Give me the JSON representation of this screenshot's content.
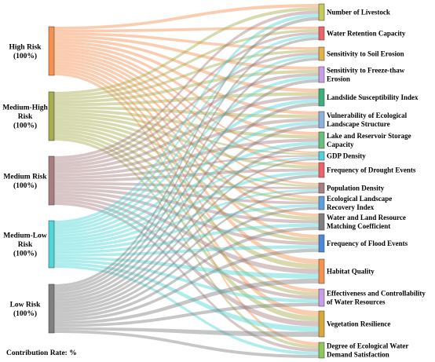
{
  "sources": [
    {
      "id": "high",
      "lines": [
        "High Risk",
        "(100%)"
      ],
      "color": "#f7914f"
    },
    {
      "id": "medium-high",
      "lines": [
        "Medium-High",
        "Risk",
        "(100%)"
      ],
      "color": "#a6ad4e"
    },
    {
      "id": "medium",
      "lines": [
        "Medium Risk",
        "(100%)"
      ],
      "color": "#a97e80"
    },
    {
      "id": "medium-low",
      "lines": [
        "Medium-Low",
        "Risk",
        "(100%)"
      ],
      "color": "#4ed6d8"
    },
    {
      "id": "low",
      "lines": [
        "Low Risk",
        "(100%)"
      ],
      "color": "#808080"
    }
  ],
  "targets": [
    {
      "id": "livestock",
      "lines": [
        "Number of Livestock"
      ],
      "color": "#c8cc5a"
    },
    {
      "id": "water-retention",
      "lines": [
        "Water Retention Capacity"
      ],
      "color": "#f0626a"
    },
    {
      "id": "soil-erosion",
      "lines": [
        "Sensitivity to Soil Erosion"
      ],
      "color": "#e3b24a"
    },
    {
      "id": "freeze-thaw",
      "lines": [
        "Sensitivity to Freeze-thaw",
        "Erosion"
      ],
      "color": "#c99ee6"
    },
    {
      "id": "landslide",
      "lines": [
        "Landslide Susceptibility Index"
      ],
      "color": "#3fb07c"
    },
    {
      "id": "landscape-structure",
      "lines": [
        "Vulnerability of Ecological",
        "Landscape Structure"
      ],
      "color": "#8db2dd"
    },
    {
      "id": "lake-reservoir",
      "lines": [
        "Lake and Reservoir Storage",
        "Capacity"
      ],
      "color": "#69c07e"
    },
    {
      "id": "gdp",
      "lines": [
        "GDP Density"
      ],
      "color": "#54cfe0"
    },
    {
      "id": "drought",
      "lines": [
        "Frequency of Drought Events"
      ],
      "color": "#f0626a"
    },
    {
      "id": "population",
      "lines": [
        "Population Density"
      ],
      "color": "#a97e80"
    },
    {
      "id": "landscape-recovery",
      "lines": [
        "Ecological Landscape",
        "Recovery Index"
      ],
      "color": "#5f9ee0"
    },
    {
      "id": "water-land",
      "lines": [
        "Water and Land Resource",
        "Matching Coefficient"
      ],
      "color": "#7f7f7f"
    },
    {
      "id": "flood",
      "lines": [
        "Frequency of Flood Events"
      ],
      "color": "#4d87d8"
    },
    {
      "id": "habitat",
      "lines": [
        "Habitat Quality"
      ],
      "color": "#f7914f"
    },
    {
      "id": "water-control",
      "lines": [
        "Effectiveness and Controllability",
        "of Water Resources"
      ],
      "color": "#c99ee6"
    },
    {
      "id": "vegetation",
      "lines": [
        "Vegetation Resilience"
      ],
      "color": "#d6a93a"
    },
    {
      "id": "water-demand",
      "lines": [
        "Degree of Ecological Water",
        "Demand Satisfaction"
      ],
      "color": "#8dc85a"
    }
  ],
  "footer": {
    "contribution_label": "Contribution Rate: %"
  }
}
